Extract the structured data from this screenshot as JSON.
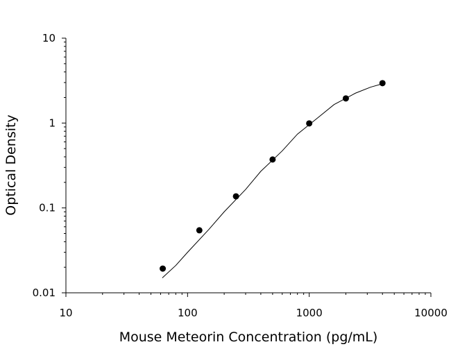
{
  "chart_data": {
    "type": "scatter",
    "x_label": "Mouse Meteorin Concentration (pg/mL)",
    "y_label": "Optical Density",
    "xscale": "log",
    "yscale": "log",
    "xlim": [
      10,
      10000
    ],
    "ylim": [
      0.01,
      10
    ],
    "xticks": [
      10,
      100,
      1000,
      10000
    ],
    "yticks": [
      0.01,
      0.1,
      1,
      10
    ],
    "xminorticks": [
      20,
      30,
      40,
      50,
      60,
      70,
      80,
      90,
      200,
      300,
      400,
      500,
      600,
      700,
      800,
      900,
      2000,
      3000,
      4000,
      5000,
      6000,
      7000,
      8000,
      9000
    ],
    "yminorticks": [
      0.02,
      0.03,
      0.04,
      0.05,
      0.06,
      0.07,
      0.08,
      0.09,
      0.2,
      0.3,
      0.4,
      0.5,
      0.6,
      0.7,
      0.8,
      0.9,
      2,
      3,
      4,
      5,
      6,
      7,
      8,
      9
    ],
    "color": "#000000",
    "points": {
      "x": [
        62.5,
        125,
        250,
        500,
        1000,
        2000,
        4000
      ],
      "y": [
        0.0193,
        0.0545,
        0.137,
        0.372,
        0.99,
        1.95,
        2.95
      ]
    },
    "curve": {
      "x": [
        62,
        80,
        100,
        150,
        200,
        300,
        400,
        600,
        800,
        1200,
        1600,
        2400,
        3200,
        4000
      ],
      "y": [
        0.015,
        0.021,
        0.03,
        0.056,
        0.09,
        0.165,
        0.27,
        0.47,
        0.74,
        1.18,
        1.65,
        2.25,
        2.65,
        2.9
      ]
    }
  }
}
